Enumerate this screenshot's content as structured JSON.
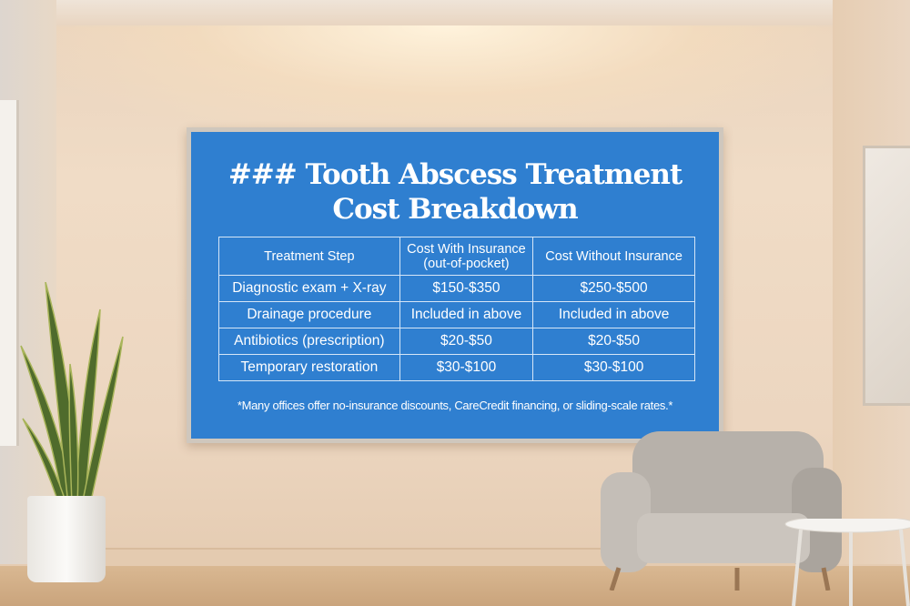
{
  "sign": {
    "title_line1": "### Tooth Abscess Treatment",
    "title_line2": "Cost Breakdown",
    "headers": [
      "Treatment Step",
      "Cost With Insurance (out-of-pocket)",
      "Cost Without Insurance"
    ],
    "rows": [
      [
        "Diagnostic exam + X-ray",
        "$150-$350",
        "$250-$500"
      ],
      [
        "Drainage procedure",
        "Included in above",
        "Included in above"
      ],
      [
        "Antibiotics (prescription)",
        "$20-$50",
        "$20-$50"
      ],
      [
        "Temporary restoration",
        "$30-$100",
        "$30-$100"
      ]
    ],
    "footnote": "*Many offices offer no-insurance discounts, CareCredit financing, or sliding-scale rates.*"
  },
  "colors": {
    "sign_blue": "#2f7fd0",
    "wall": "#ecd6c0",
    "chair": "#bdb7b0"
  }
}
